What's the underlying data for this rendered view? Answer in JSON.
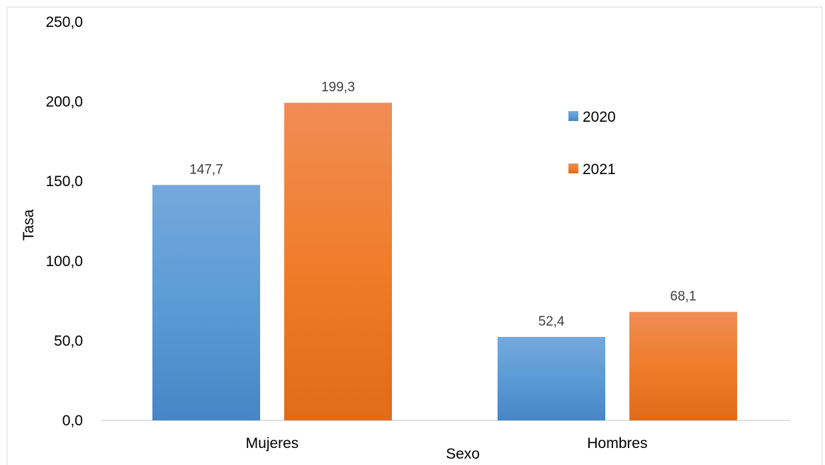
{
  "chart_data": {
    "type": "bar",
    "categories": [
      "Mujeres",
      "Hombres"
    ],
    "series": [
      {
        "name": "2020",
        "values": [
          147.7,
          52.4
        ],
        "labels": [
          "147,7",
          "52,4"
        ],
        "color": "#5b9bd5"
      },
      {
        "name": "2021",
        "values": [
          199.3,
          68.1
        ],
        "labels": [
          "199,3",
          "68,1"
        ],
        "color": "#ed7d31"
      }
    ],
    "xlabel": "Sexo",
    "ylabel": "Tasa",
    "ylim": [
      0,
      250
    ],
    "yticks": [
      {
        "value": 0,
        "label": "0,0"
      },
      {
        "value": 50,
        "label": "50,0"
      },
      {
        "value": 100,
        "label": "100,0"
      },
      {
        "value": 150,
        "label": "150,0"
      },
      {
        "value": 200,
        "label": "200,0"
      },
      {
        "value": 250,
        "label": "250,0"
      }
    ],
    "grid": false,
    "legend": "right"
  }
}
